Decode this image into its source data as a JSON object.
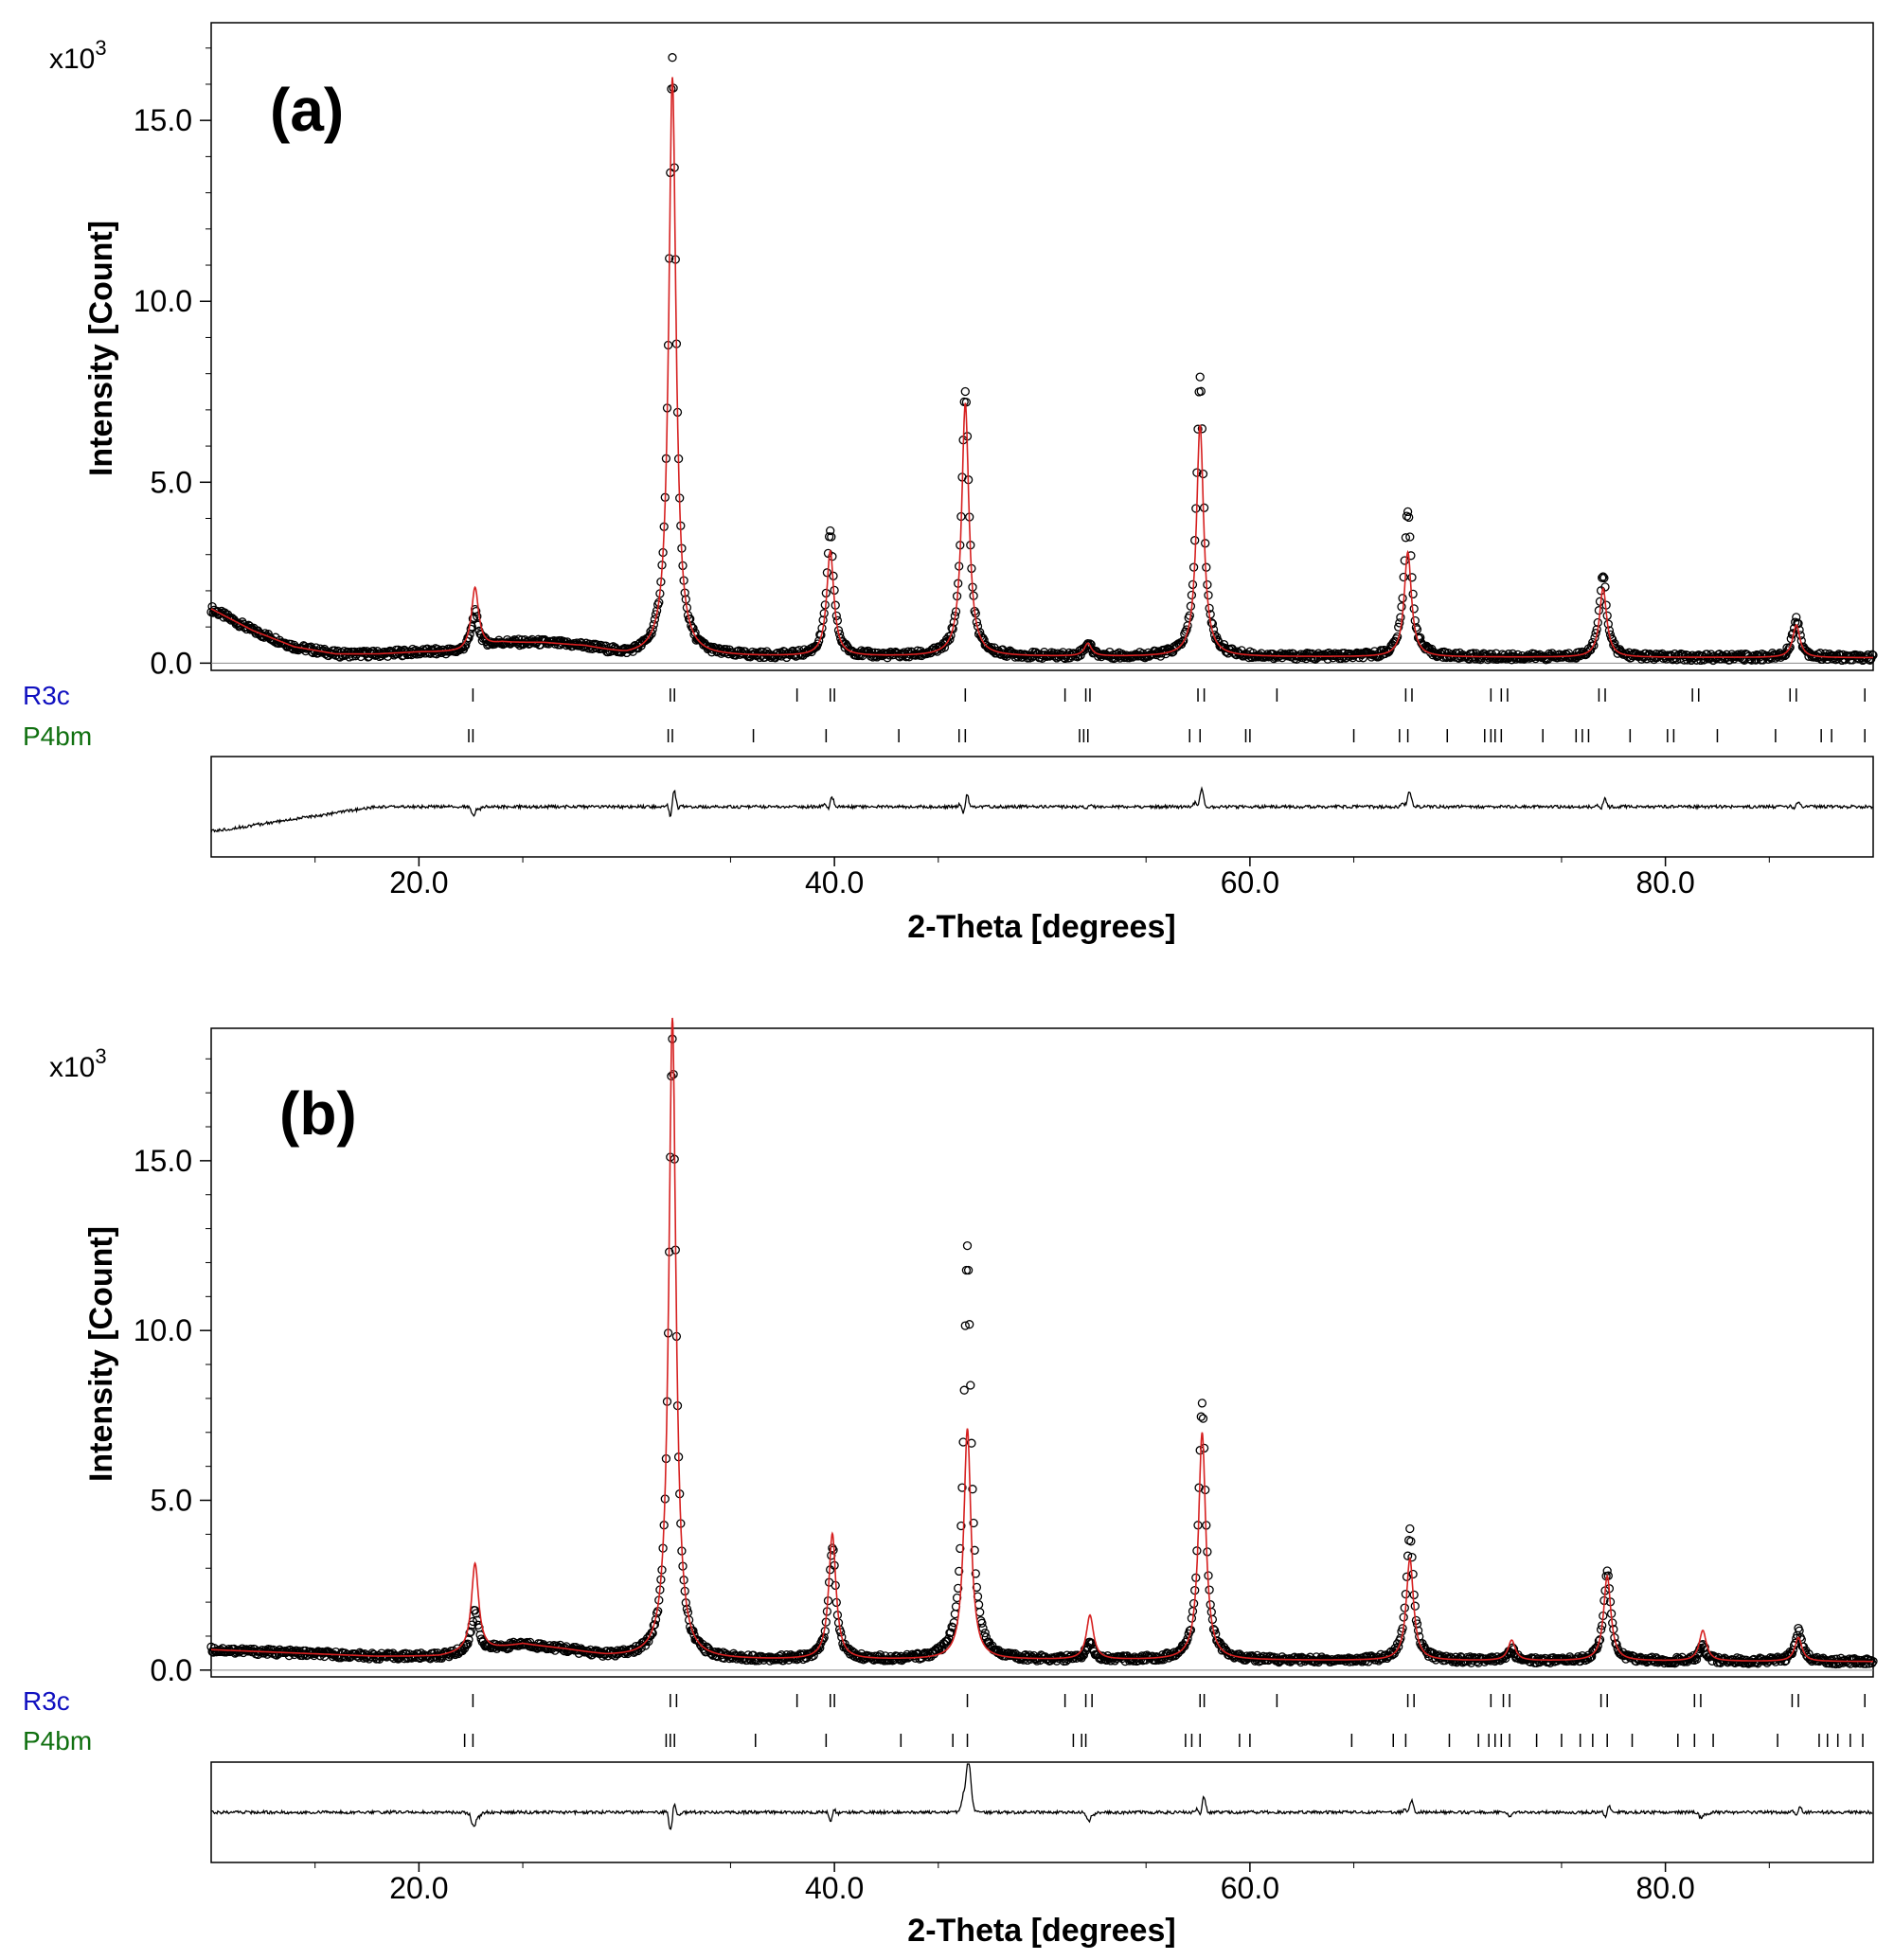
{
  "colors": {
    "observed": "#000000",
    "calculated": "#d62020",
    "difference": "#000000",
    "r3c": "#1010c0",
    "p4bm": "#107010",
    "frame": "#000000"
  },
  "chart_data": [
    {
      "type": "line",
      "panel_label": "(a)",
      "multiplier_label": "x10",
      "multiplier_exp": "3",
      "ylabel": "Intensity [Count]",
      "xlabel": "2-Theta [degrees]",
      "xlim": [
        10,
        90
      ],
      "ylim": [
        -0.2,
        17.7
      ],
      "yticks": [
        "0.0",
        "5.0",
        "10.0",
        "15.0"
      ],
      "xticks": [
        "20.0",
        "40.0",
        "60.0",
        "80.0"
      ],
      "series": [
        {
          "name": "observed",
          "style": "circles"
        },
        {
          "name": "calculated",
          "style": "line"
        },
        {
          "name": "difference",
          "style": "line"
        }
      ],
      "background": [
        [
          10,
          1.5
        ],
        [
          12,
          0.9
        ],
        [
          14,
          0.45
        ],
        [
          16,
          0.25
        ],
        [
          18,
          0.25
        ],
        [
          20,
          0.3
        ],
        [
          22,
          0.3
        ],
        [
          24,
          0.55
        ],
        [
          26,
          0.55
        ],
        [
          28,
          0.45
        ],
        [
          30,
          0.2
        ],
        [
          34,
          0.18
        ],
        [
          50,
          0.18
        ],
        [
          90,
          0.15
        ]
      ],
      "peaks": [
        {
          "x": 22.7,
          "obs": 1.0,
          "calc": 1.7
        },
        {
          "x": 32.2,
          "obs": 16.5,
          "calc": 16.0
        },
        {
          "x": 39.8,
          "obs": 3.4,
          "calc": 2.9
        },
        {
          "x": 46.3,
          "obs": 7.4,
          "calc": 7.0
        },
        {
          "x": 52.2,
          "obs": 0.35,
          "calc": 0.35
        },
        {
          "x": 57.6,
          "obs": 7.7,
          "calc": 6.4
        },
        {
          "x": 67.6,
          "obs": 4.1,
          "calc": 2.9
        },
        {
          "x": 77.0,
          "obs": 2.3,
          "calc": 1.9
        },
        {
          "x": 86.3,
          "obs": 1.1,
          "calc": 0.9
        }
      ],
      "phases": [
        {
          "name": "R3c",
          "reflections": [
            22.6,
            32.1,
            32.3,
            38.2,
            39.8,
            40.0,
            46.3,
            51.1,
            52.1,
            52.3,
            57.5,
            57.8,
            61.3,
            67.5,
            67.8,
            71.6,
            72.1,
            72.4,
            76.8,
            77.1,
            81.3,
            81.6,
            86.0,
            86.3,
            89.6
          ]
        },
        {
          "name": "P4bm",
          "reflections": [
            22.4,
            22.6,
            32.0,
            32.2,
            36.1,
            39.6,
            43.1,
            46.0,
            46.3,
            51.8,
            52.0,
            52.2,
            57.1,
            57.6,
            59.8,
            60.0,
            65.0,
            67.2,
            67.6,
            69.5,
            71.3,
            71.6,
            71.8,
            72.1,
            74.1,
            75.7,
            76.0,
            76.3,
            78.3,
            80.1,
            80.4,
            82.5,
            85.3,
            87.5,
            88.0,
            89.6
          ]
        }
      ]
    },
    {
      "type": "line",
      "panel_label": "(b)",
      "multiplier_label": "x10",
      "multiplier_exp": "3",
      "ylabel": "Intensity [Count]",
      "xlabel": "2-Theta [degrees]",
      "xlim": [
        10,
        90
      ],
      "ylim": [
        -0.2,
        18.9
      ],
      "yticks": [
        "0.0",
        "5.0",
        "10.0",
        "15.0"
      ],
      "xticks": [
        "20.0",
        "40.0",
        "60.0",
        "80.0"
      ],
      "series": [
        {
          "name": "observed",
          "style": "circles"
        },
        {
          "name": "calculated",
          "style": "line"
        },
        {
          "name": "difference",
          "style": "line"
        }
      ],
      "background": [
        [
          10,
          0.6
        ],
        [
          14,
          0.5
        ],
        [
          18,
          0.4
        ],
        [
          21,
          0.4
        ],
        [
          23.5,
          0.6
        ],
        [
          25,
          0.75
        ],
        [
          27,
          0.6
        ],
        [
          29,
          0.4
        ],
        [
          32,
          0.3
        ],
        [
          50,
          0.3
        ],
        [
          90,
          0.25
        ]
      ],
      "peaks": [
        {
          "x": 22.7,
          "obs": 1.2,
          "calc": 2.6
        },
        {
          "x": 32.2,
          "obs": 18.2,
          "calc": 18.9
        },
        {
          "x": 39.9,
          "obs": 3.3,
          "calc": 3.7
        },
        {
          "x": 46.4,
          "obs": 12.1,
          "calc": 6.8
        },
        {
          "x": 52.3,
          "obs": 0.5,
          "calc": 1.3
        },
        {
          "x": 57.7,
          "obs": 7.6,
          "calc": 6.7
        },
        {
          "x": 67.7,
          "obs": 3.8,
          "calc": 3.0
        },
        {
          "x": 72.6,
          "obs": 0.3,
          "calc": 0.6
        },
        {
          "x": 77.2,
          "obs": 2.6,
          "calc": 2.5
        },
        {
          "x": 81.8,
          "obs": 0.4,
          "calc": 0.9
        },
        {
          "x": 86.4,
          "obs": 0.9,
          "calc": 0.7
        }
      ],
      "phases": [
        {
          "name": "R3c",
          "reflections": [
            22.6,
            32.1,
            32.4,
            38.2,
            39.8,
            40.0,
            46.4,
            51.1,
            52.1,
            52.4,
            57.6,
            57.8,
            61.3,
            67.6,
            67.9,
            71.6,
            72.2,
            72.5,
            76.9,
            77.2,
            81.4,
            81.7,
            86.1,
            86.4,
            89.6
          ]
        },
        {
          "name": "P4bm",
          "reflections": [
            22.2,
            22.6,
            31.9,
            32.1,
            32.3,
            36.2,
            39.6,
            43.2,
            45.7,
            46.4,
            51.5,
            51.9,
            52.1,
            56.9,
            57.2,
            57.6,
            59.5,
            60.0,
            64.9,
            66.9,
            67.5,
            69.6,
            71.0,
            71.5,
            71.8,
            72.1,
            72.5,
            73.8,
            75.0,
            75.9,
            76.5,
            77.2,
            78.4,
            80.6,
            81.4,
            82.3,
            85.4,
            87.4,
            87.8,
            88.3,
            88.9,
            89.5
          ]
        }
      ]
    }
  ]
}
